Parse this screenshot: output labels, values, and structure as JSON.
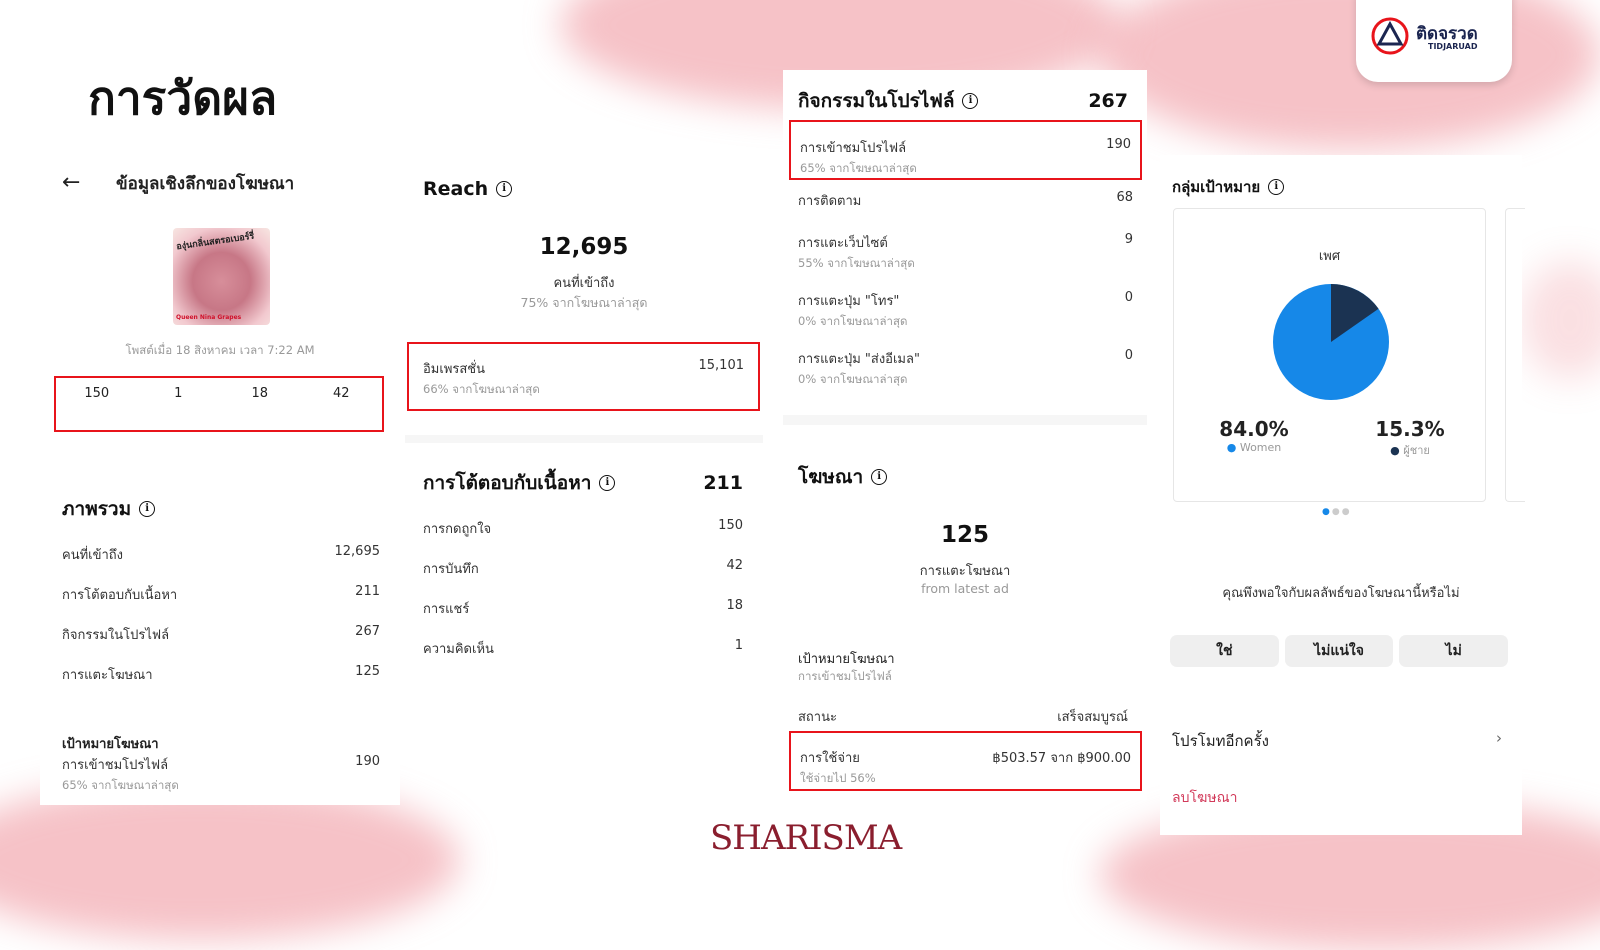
{
  "slide": {
    "title": "การวัดผล",
    "brand": "SHARISMA",
    "logo_text": "ติดจรวด",
    "logo_sub": "TIDJARUAD"
  },
  "insights": {
    "header": "ข้อมูลเชิงลึกของโฆษณา",
    "post_date": "โพสต์เมื่อ 18 สิงหาคม เวลา 7:22 AM",
    "image_text": "องุ่นกลิ่นสตรอเบอร์รี่",
    "image_caption": "Queen Nina Grapes",
    "stats": [
      {
        "icon": "heart-icon",
        "value": "150"
      },
      {
        "icon": "comment-icon",
        "value": "1"
      },
      {
        "icon": "share-icon",
        "value": "18"
      },
      {
        "icon": "bookmark-icon",
        "value": "42"
      }
    ]
  },
  "overview": {
    "title": "ภาพรวม",
    "rows": [
      {
        "label": "คนที่เข้าถึง",
        "value": "12,695"
      },
      {
        "label": "การโต้ตอบกับเนื้อหา",
        "value": "211"
      },
      {
        "label": "กิจกรรมในโปรไฟล์",
        "value": "267"
      },
      {
        "label": "การแตะโฆษณา",
        "value": "125"
      }
    ],
    "goal_title": "เป้าหมายโฆษณา",
    "goal_label": "การเข้าชมโปรไฟล์",
    "goal_value": "190",
    "goal_sub": "65% จากโฆษณาล่าสุด"
  },
  "reach": {
    "title": "Reach",
    "value": "12,695",
    "label": "คนที่เข้าถึง",
    "sub": "75% จากโฆษณาล่าสุด",
    "impressions_label": "อิมเพรสชั่น",
    "impressions_value": "15,101",
    "impressions_sub": "66% จากโฆษณาล่าสุด"
  },
  "engagement": {
    "title": "การโต้ตอบกับเนื้อหา",
    "total": "211",
    "rows": [
      {
        "label": "การกดถูกใจ",
        "value": "150"
      },
      {
        "label": "การบันทึก",
        "value": "42"
      },
      {
        "label": "การแชร์",
        "value": "18"
      },
      {
        "label": "ความคิดเห็น",
        "value": "1"
      }
    ]
  },
  "profile": {
    "title": "กิจกรรมในโปรไฟล์",
    "total": "267",
    "rows": [
      {
        "label": "การเข้าชมโปรไฟล์",
        "sub": "65% จากโฆษณาล่าสุด",
        "value": "190"
      },
      {
        "label": "การติดตาม",
        "sub": "",
        "value": "68"
      },
      {
        "label": "การแตะเว็บไซต์",
        "sub": "55% จากโฆษณาล่าสุด",
        "value": "9"
      },
      {
        "label": "การแตะปุ่ม \"โทร\"",
        "sub": "0% จากโฆษณาล่าสุด",
        "value": "0"
      },
      {
        "label": "การแตะปุ่ม \"ส่งอีเมล\"",
        "sub": "0% จากโฆษณาล่าสุด",
        "value": "0"
      }
    ]
  },
  "ad": {
    "title": "โฆษณา",
    "value": "125",
    "label": "การแตะโฆษณา",
    "sub": "from latest ad",
    "goal_title": "เป้าหมายโฆษณา",
    "goal_sub": "การเข้าชมโปรไฟล์",
    "status_label": "สถานะ",
    "status_value": "เสร็จสมบูรณ์",
    "spend_label": "การใช้จ่าย",
    "spend_value": "฿503.57 จาก ฿900.00",
    "spend_sub": "ใช้จ่ายไป 56%"
  },
  "audience": {
    "title": "กลุ่มเป้าหมาย",
    "chart_title": "เพศ",
    "women_pct": "84.0%",
    "women_label": "Women",
    "men_pct": "15.3%",
    "men_label": "ผู้ชาย",
    "colors": {
      "women": "#1688e8",
      "men": "#1b3352"
    }
  },
  "feedback": {
    "question": "คุณพึงพอใจกับผลลัพธ์ของโฆษณานี้หรือไม่",
    "options": [
      "ใช่",
      "ไม่แน่ใจ",
      "ไม่"
    ]
  },
  "actions": {
    "promote": "โปรโมทอีกครั้ง",
    "delete": "ลบโฆษณา"
  }
}
